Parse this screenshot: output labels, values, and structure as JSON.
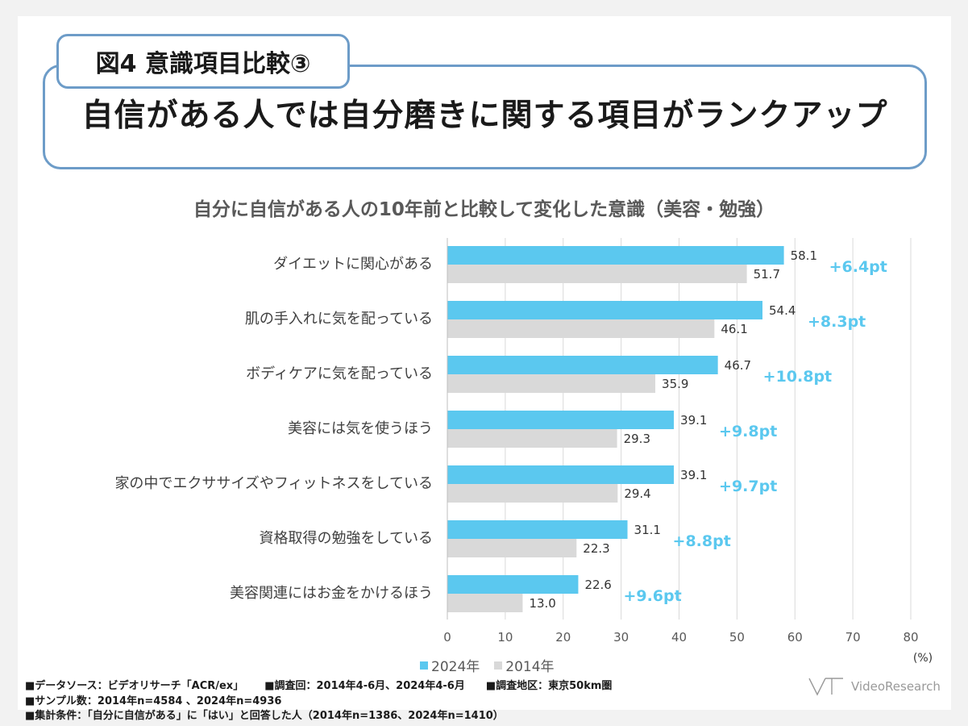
{
  "fig_tag": "図4 意識項目比較③",
  "headline": "自信がある人では自分磨きに関する項目がランクアップ",
  "chart_data": {
    "type": "bar",
    "orientation": "horizontal",
    "title": "自分に自信がある人の10年前と比較して変化した意識（美容・勉強）",
    "categories": [
      "ダイエットに関心がある",
      "肌の手入れに気を配っている",
      "ボディケアに気を配っている",
      "美容には気を使うほう",
      "家の中でエクササイズやフィットネスをしている",
      "資格取得の勉強をしている",
      "美容関連にはお金をかけるほう"
    ],
    "series": [
      {
        "name": "2024年",
        "color": "#5bc8ef",
        "values": [
          58.1,
          54.4,
          46.7,
          39.1,
          39.1,
          31.1,
          22.6
        ]
      },
      {
        "name": "2014年",
        "color": "#d9d9d9",
        "values": [
          51.7,
          46.1,
          35.9,
          29.3,
          29.4,
          22.3,
          13.0
        ]
      }
    ],
    "diff_labels": [
      "+6.4pt",
      "+8.3pt",
      "+10.8pt",
      "+9.8pt",
      "+9.7pt",
      "+8.8pt",
      "+9.6pt"
    ],
    "diff_color": "#5bc8ef",
    "xlim": [
      0,
      80
    ],
    "xticks": [
      0,
      10,
      20,
      30,
      40,
      50,
      60,
      70,
      80
    ],
    "unit": "(%)",
    "grid": true,
    "legend": "bottom"
  },
  "footer": {
    "source": "■データソース：ビデオリサーチ「ACR/ex」",
    "period": "■調査回：2014年4-6月、2024年4-6月",
    "area": "■調査地区：東京50km圏",
    "sample": "■サンプル数：2014年n=4584 、2024年n=4936",
    "condition": "■集計条件：「自分に自信がある」に「はい」と回答した人（2014年n=1386、2024年n=1410）"
  },
  "logo": {
    "text": "VideoResearch",
    "icon": "vr-logo-icon"
  }
}
